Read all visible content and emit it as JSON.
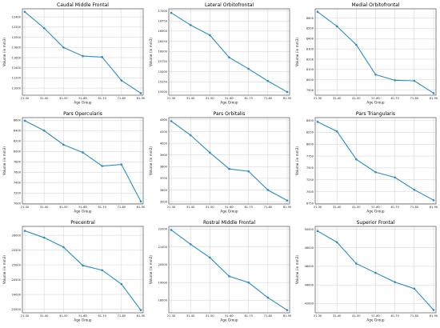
{
  "chart_data": [
    {
      "type": "line",
      "title": "Caudal Middle Frontal",
      "xlabel": "Age Group",
      "ylabel": "Volume (in mm3)",
      "categories": [
        "21-30",
        "31-40",
        "41-50",
        "51-60",
        "61-70",
        "71-80",
        "81-90"
      ],
      "values": [
        12500,
        12180,
        11800,
        11630,
        11610,
        11150,
        10900
      ],
      "yticks": [
        11000,
        11200,
        11400,
        11600,
        11800,
        12000,
        12200,
        12400
      ],
      "ylim": [
        10860,
        12560
      ],
      "grid": true,
      "color": "#2b8cbe"
    },
    {
      "type": "line",
      "title": "Lateral Orbitofrontal",
      "xlabel": "Age Group",
      "ylabel": "Volume (in mm3)",
      "categories": [
        "21-30",
        "31-40",
        "41-50",
        "51-60",
        "61-70",
        "71-80",
        "81-90"
      ],
      "values": [
        16950,
        16650,
        16400,
        15850,
        15570,
        15270,
        15000
      ],
      "yticks": [
        15000,
        15250,
        15500,
        15750,
        16000,
        16250,
        16500,
        16750,
        17000
      ],
      "ylim": [
        14920,
        17050
      ],
      "grid": true,
      "color": "#2b8cbe"
    },
    {
      "type": "line",
      "title": "Medial Orbitofrontal",
      "xlabel": "Age Group",
      "ylabel": "Volume (in mm3)",
      "categories": [
        "21-30",
        "31-40",
        "41-50",
        "51-60",
        "61-70",
        "71-80",
        "81-90"
      ],
      "values": [
        8660,
        8520,
        8340,
        8050,
        7995,
        7990,
        7870
      ],
      "yticks": [
        7900,
        8000,
        8100,
        8200,
        8300,
        8400,
        8500,
        8600
      ],
      "ylim": [
        7850,
        8690
      ],
      "grid": true,
      "color": "#2b8cbe"
    },
    {
      "type": "line",
      "title": "Pars Opercularis",
      "xlabel": "Age Group",
      "ylabel": "Volume (in mm3)",
      "categories": [
        "21-30",
        "31-40",
        "41-50",
        "51-60",
        "61-70",
        "71-80",
        "81-90"
      ],
      "values": [
        8590,
        8400,
        8130,
        7980,
        7720,
        7750,
        7040
      ],
      "yticks": [
        7000,
        7200,
        7400,
        7600,
        7800,
        8000,
        8200,
        8400,
        8600
      ],
      "ylim": [
        6990,
        8650
      ],
      "grid": true,
      "color": "#2b8cbe"
    },
    {
      "type": "line",
      "title": "Pars Orbitalis",
      "xlabel": "Age Group",
      "ylabel": "Volume (in mm3)",
      "categories": [
        "21-30",
        "31-40",
        "41-50",
        "51-60",
        "61-70",
        "71-80",
        "81-90"
      ],
      "values": [
        4190,
        4070,
        3920,
        3780,
        3760,
        3600,
        3510
      ],
      "yticks": [
        3500,
        3600,
        3700,
        3800,
        3900,
        4000,
        4100,
        4200
      ],
      "ylim": [
        3480,
        4220
      ],
      "grid": true,
      "color": "#2b8cbe"
    },
    {
      "type": "line",
      "title": "Pars Triangularis",
      "xlabel": "Age Group",
      "ylabel": "Volume (in mm3)",
      "categories": [
        "21-30",
        "31-40",
        "41-50",
        "51-60",
        "61-70",
        "71-80",
        "81-90"
      ],
      "values": [
        8470,
        8270,
        7680,
        7410,
        7300,
        7040,
        6820
      ],
      "yticks": [
        6750,
        7000,
        7250,
        7500,
        7750,
        8000,
        8250,
        8500
      ],
      "ylim": [
        6740,
        8560
      ],
      "grid": true,
      "color": "#2b8cbe"
    },
    {
      "type": "line",
      "title": "Precentral",
      "xlabel": "Age Group",
      "ylabel": "Volume (in mm3)",
      "categories": [
        "21-30",
        "31-40",
        "41-50",
        "51-60",
        "61-70",
        "71-80",
        "81-90"
      ],
      "values": [
        26150,
        25920,
        25600,
        24980,
        24820,
        24350,
        23470
      ],
      "yticks": [
        23500,
        24000,
        24500,
        25000,
        25500,
        26000
      ],
      "ylim": [
        23380,
        26300
      ],
      "grid": true,
      "color": "#2b8cbe"
    },
    {
      "type": "line",
      "title": "Rostral Middle Frontal",
      "xlabel": "Age Group",
      "ylabel": "Volume (in mm3)",
      "categories": [
        "21-30",
        "31-40",
        "41-50",
        "51-60",
        "61-70",
        "71-80",
        "81-90"
      ],
      "values": [
        21950,
        21150,
        20400,
        19350,
        19000,
        18150,
        17450
      ],
      "yticks": [
        18000,
        19000,
        20000,
        21000,
        22000
      ],
      "ylim": [
        17300,
        22150
      ],
      "grid": true,
      "color": "#2b8cbe"
    },
    {
      "type": "line",
      "title": "Superior Frontal",
      "xlabel": "Age Group",
      "ylabel": "Volume (in mm3)",
      "categories": [
        "21-30",
        "31-40",
        "41-50",
        "51-60",
        "61-70",
        "71-80",
        "81-90"
      ],
      "values": [
        49800,
        48600,
        46300,
        45300,
        44300,
        43600,
        41300
      ],
      "yticks": [
        42000,
        44000,
        46000,
        48000,
        50000
      ],
      "ylim": [
        41000,
        50300
      ],
      "grid": true,
      "color": "#2b8cbe"
    }
  ]
}
